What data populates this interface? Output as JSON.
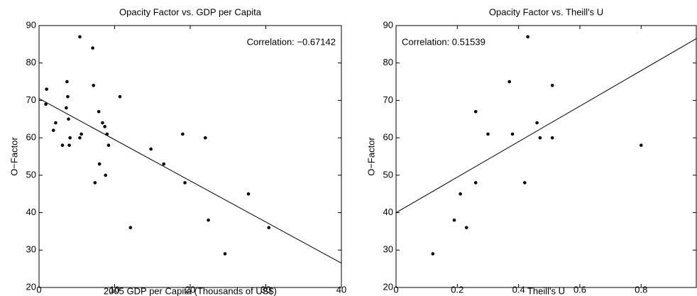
{
  "chart_data": [
    {
      "type": "scatter",
      "title": "Opacity Factor vs. GDP per Capita",
      "x_label": "2005 GDP per Capita (Thousands of US$)",
      "y_label": "O−Factor",
      "annotation": "Correlation: −0.67142",
      "annotation_position": "upper right",
      "color": "#000000",
      "x": [
        1.0,
        0.9,
        2.2,
        1.9,
        3.1,
        3.6,
        3.7,
        3.8,
        3.9,
        4.0,
        4.1,
        5.4,
        5.4,
        5.6,
        7.1,
        7.2,
        7.4,
        7.9,
        8.0,
        8.4,
        8.8,
        8.7,
        9.0,
        9.2,
        10.7,
        12.1,
        14.8,
        16.5,
        19.0,
        19.3,
        22.0,
        22.4,
        24.6,
        27.7,
        30.4
      ],
      "values": [
        73,
        69,
        64,
        62,
        58,
        68,
        75,
        71,
        65,
        58,
        60,
        87,
        60,
        61,
        84,
        74,
        48,
        67,
        53,
        64,
        50,
        63,
        61,
        58,
        71,
        36,
        57,
        53,
        61,
        48,
        60,
        38,
        29,
        45,
        36
      ],
      "fit": {
        "x": [
          0,
          40
        ],
        "y": [
          70.5,
          26.5
        ]
      },
      "xlim": [
        0,
        40
      ],
      "xticks": [
        0,
        10,
        20,
        30,
        40
      ],
      "ylim": [
        20,
        90
      ],
      "yticks": [
        20,
        30,
        40,
        50,
        60,
        70,
        80,
        90
      ],
      "grid": false
    },
    {
      "type": "scatter",
      "title": "Opacity Factor vs. Theill's U",
      "x_label": "Theill's U",
      "y_label": "O−Factor",
      "annotation": "Correlation: 0.51539",
      "annotation_position": "upper left",
      "color": "#000000",
      "x": [
        0.12,
        0.19,
        0.21,
        0.23,
        0.26,
        0.26,
        0.3,
        0.37,
        0.38,
        0.43,
        0.42,
        0.46,
        0.47,
        0.51,
        0.51,
        0.8
      ],
      "values": [
        29,
        38,
        45,
        36,
        48,
        67,
        61,
        75,
        61,
        87,
        48,
        64,
        60,
        74,
        60,
        58
      ],
      "fit": {
        "x": [
          0,
          0.98
        ],
        "y": [
          40,
          86.5
        ]
      },
      "xlim": [
        0,
        0.98
      ],
      "xticks": [
        0,
        0.2,
        0.4,
        0.6,
        0.8
      ],
      "ylim": [
        20,
        90
      ],
      "yticks": [
        20,
        30,
        40,
        50,
        60,
        70,
        80,
        90
      ],
      "grid": false
    }
  ]
}
